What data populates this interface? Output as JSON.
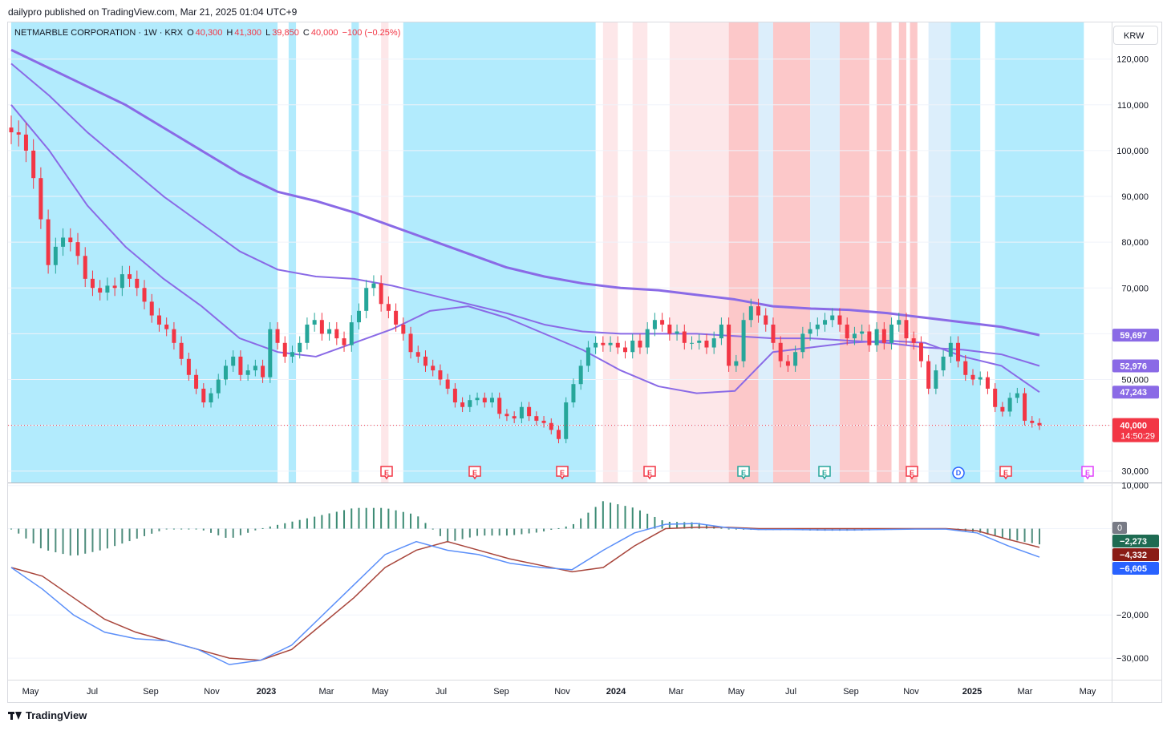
{
  "header": {
    "publisher": "dailypro published on TradingView.com, Mar 21, 2025 01:04 UTC+9"
  },
  "legend": {
    "symbol": "NETMARBLE CORPORATION · 1W · KRX",
    "o_label": "O",
    "o_value": "40,300",
    "h_label": "H",
    "h_value": "41,300",
    "l_label": "L",
    "l_value": "39,850",
    "c_label": "C",
    "c_value": "40,000",
    "change": "−100 (−0.25%)"
  },
  "currency_button": "KRW",
  "footer": {
    "brand": "TradingView"
  },
  "colors": {
    "up": "#26a69a",
    "down": "#f23645",
    "ma": "#8a6ae6",
    "cyan_zone": "#b2ebfd",
    "light_blue_zone": "#dceefb",
    "pink_zone": "#fde7e9",
    "salmon_zone": "#fcc8c9",
    "macd": "#5b8ff9",
    "signal": "#a8453b"
  },
  "chart_data": [
    {
      "type": "candlestick",
      "title": "NETMARBLE CORPORATION · 1W · KRX",
      "y_axis_ticks": [
        "30,000",
        "40,000",
        "50,000",
        "60,000",
        "70,000",
        "80,000",
        "90,000",
        "100,000",
        "110,000",
        "120,000"
      ],
      "ylim": [
        27500,
        128000
      ],
      "x_axis_ticks": [
        "May",
        "Jul",
        "Sep",
        "Nov",
        "2023",
        "Mar",
        "May",
        "Jul",
        "Sep",
        "Nov",
        "2024",
        "Mar",
        "May",
        "Jul",
        "Sep",
        "Nov",
        "2025",
        "Mar",
        "May"
      ],
      "x_axis_bold_ticks": [
        "2023",
        "2024",
        "2025"
      ],
      "close_series": [
        104000,
        103500,
        100000,
        94000,
        85000,
        75000,
        79000,
        81000,
        80000,
        77000,
        72000,
        70000,
        69000,
        70500,
        70000,
        73000,
        72000,
        70000,
        67000,
        64000,
        62000,
        61000,
        58000,
        54500,
        51000,
        48000,
        45000,
        47000,
        50000,
        53000,
        55000,
        51000,
        52000,
        53000,
        50500,
        61000,
        58000,
        55000,
        56000,
        58000,
        62000,
        63000,
        60000,
        61000,
        59000,
        57500,
        62500,
        65000,
        70000,
        71000,
        66500,
        65000,
        62000,
        60000,
        56000,
        55000,
        53000,
        52000,
        50000,
        48000,
        45000,
        44000,
        45500,
        46000,
        45000,
        46000,
        42500,
        42000,
        41500,
        44000,
        42000,
        41000,
        40500,
        39000,
        37000,
        45000,
        49000,
        53000,
        57000,
        58000,
        57500,
        58000,
        57000,
        56000,
        58500,
        57000,
        61000,
        63000,
        62000,
        60000,
        60500,
        58000,
        58000,
        58500,
        57000,
        59000,
        62000,
        53000,
        54000,
        63000,
        66000,
        64000,
        62000,
        58000,
        54000,
        53000,
        56000,
        60000,
        61000,
        62000,
        63000,
        64000,
        62000,
        59000,
        60000,
        60500,
        57500,
        61000,
        58000,
        62000,
        63000,
        59000,
        58000,
        54000,
        48000,
        52000,
        55000,
        58000,
        54000,
        51000,
        50000,
        50500,
        48000,
        44000,
        43000,
        46000,
        47000,
        41000,
        40500,
        40000
      ],
      "weekly_bars_start": "2022-04-25",
      "last_price_label": "40,000",
      "countdown_label": "14:50:29",
      "ma_series": [
        {
          "label": "59,697",
          "values_sampled": [
            122000,
            118000,
            114000,
            110000,
            105000,
            100000,
            95000,
            91000,
            89000,
            86500,
            83500,
            80500,
            77500,
            74500,
            72500,
            71000,
            70000,
            69500,
            68500,
            67500,
            66000,
            65500,
            65200,
            64500,
            63500,
            62500,
            61500,
            59697
          ]
        },
        {
          "label": "52,976",
          "values_sampled": [
            119000,
            112000,
            104000,
            97000,
            90000,
            84000,
            78000,
            74000,
            72500,
            72000,
            70500,
            68500,
            66500,
            64500,
            62000,
            60500,
            60000,
            60000,
            60000,
            59500,
            59000,
            59000,
            58500,
            58000,
            57000,
            56500,
            55500,
            52976
          ]
        },
        {
          "label": "47,243",
          "values_sampled": [
            110000,
            100000,
            88000,
            79000,
            72000,
            66000,
            59000,
            56000,
            55000,
            58000,
            61000,
            65000,
            66000,
            63500,
            60000,
            56500,
            52000,
            48500,
            47000,
            47500,
            56000,
            57000,
            58000,
            58500,
            58000,
            55000,
            53000,
            47243
          ]
        }
      ],
      "event_markers": [
        {
          "date": "Apr 2023",
          "label": "E"
        },
        {
          "date": "Jul 2023",
          "label": "E"
        },
        {
          "date": "Nov 2023",
          "label": "E"
        },
        {
          "date": "Feb 2024",
          "label": "E"
        },
        {
          "date": "May 2024",
          "label": "E"
        },
        {
          "date": "Aug 2024",
          "label": "E"
        },
        {
          "date": "Nov 2024",
          "label": "E"
        },
        {
          "date": "Dec 2024",
          "label": "D"
        },
        {
          "date": "Feb 2025",
          "label": "E"
        },
        {
          "date": "May 2025",
          "label": "E"
        }
      ]
    },
    {
      "type": "macd",
      "y_axis_ticks": [
        "10,000",
        "0",
        "−20,000",
        "−30,000"
      ],
      "ylim": [
        -35000,
        10500
      ],
      "histogram_label": "−2,273",
      "signal_label": "−4,332",
      "macd_label": "−6,605",
      "zero_label": "0",
      "macd_sampled": [
        -9000,
        -14000,
        -20000,
        -24000,
        -25500,
        -26000,
        -28000,
        -31500,
        -30500,
        -27000,
        -20000,
        -13000,
        -6000,
        -3000,
        -5000,
        -6000,
        -8000,
        -9000,
        -9500,
        -5000,
        -1000,
        1000,
        1200,
        200,
        -200,
        -200,
        -300,
        -300,
        -200,
        -100,
        -100,
        -1000,
        -4000,
        -6605
      ],
      "signal_sampled": [
        -9000,
        -11000,
        -16000,
        -21000,
        -24000,
        -26000,
        -28000,
        -30000,
        -30500,
        -28000,
        -22000,
        -16000,
        -9000,
        -5000,
        -3000,
        -5000,
        -7000,
        -8500,
        -10000,
        -9000,
        -4000,
        0,
        300,
        300,
        0,
        0,
        0,
        0,
        0,
        0,
        0,
        -500,
        -2500,
        -4332
      ]
    }
  ]
}
